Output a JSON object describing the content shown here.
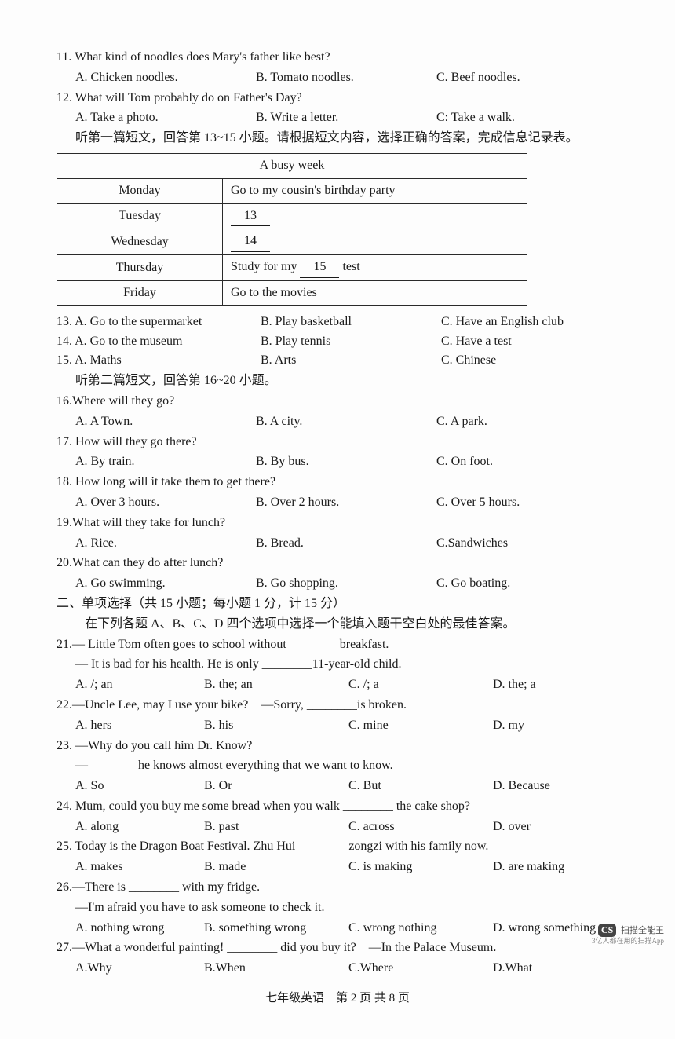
{
  "q11": {
    "text": "11. What kind of noodles does Mary's father like best?",
    "a": "A. Chicken noodles.",
    "b": "B. Tomato noodles.",
    "c": "C. Beef noodles."
  },
  "q12": {
    "text": "12. What will Tom probably do on Father's Day?",
    "a": "A. Take a photo.",
    "b": "B. Write a letter.",
    "c": "C: Take a walk."
  },
  "passage1_intro": "听第一篇短文，回答第 13~15 小题。请根据短文内容，选择正确的答案，完成信息记录表。",
  "table": {
    "title": "A busy week",
    "rows": [
      {
        "day": "Monday",
        "activity_pre": "Go to my cousin's birthday party",
        "blank": "",
        "activity_post": ""
      },
      {
        "day": "Tuesday",
        "activity_pre": "",
        "blank": "13",
        "activity_post": ""
      },
      {
        "day": "Wednesday",
        "activity_pre": "",
        "blank": "14",
        "activity_post": ""
      },
      {
        "day": "Thursday",
        "activity_pre": "Study for my ",
        "blank": "15",
        "activity_post": " test"
      },
      {
        "day": "Friday",
        "activity_pre": "Go to the movies",
        "blank": "",
        "activity_post": ""
      }
    ]
  },
  "q13": {
    "a": "13. A. Go to the supermarket",
    "b": "B. Play basketball",
    "c": "C. Have an English club"
  },
  "q14": {
    "a": "14. A. Go to the museum",
    "b": "B. Play tennis",
    "c": "C. Have a test"
  },
  "q15": {
    "a": "15. A. Maths",
    "b": "B. Arts",
    "c": "C. Chinese"
  },
  "passage2_intro": "听第二篇短文，回答第 16~20 小题。",
  "q16": {
    "text": "16.Where will they go?",
    "a": "A. A Town.",
    "b": "B. A city.",
    "c": "C. A park."
  },
  "q17": {
    "text": "17. How will they go there?",
    "a": "A. By train.",
    "b": "B. By bus.",
    "c": "C. On foot."
  },
  "q18": {
    "text": "18. How long will it take them to get there?",
    "a": "A. Over 3 hours.",
    "b": "B. Over 2 hours.",
    "c": "C. Over 5 hours."
  },
  "q19": {
    "text": "19.What will they take for lunch?",
    "a": "A. Rice.",
    "b": "B. Bread.",
    "c": "C.Sandwiches"
  },
  "q20": {
    "text": "20.What can they do after lunch?",
    "a": "A. Go swimming.",
    "b": "B. Go shopping.",
    "c": "C. Go boating."
  },
  "section2_title": "二、单项选择（共 15 小题；每小题 1 分，计 15 分）",
  "section2_sub": "在下列各题 A、B、C、D 四个选项中选择一个能填入题干空白处的最佳答案。",
  "q21": {
    "l1": "21.— Little Tom often goes to school without ________breakfast.",
    "l2": "— It is bad for his health. He is only ________11-year-old child.",
    "a": "A. /; an",
    "b": "B. the; an",
    "c": "C. /; a",
    "d": "D. the; a"
  },
  "q22": {
    "l1": "22.—Uncle Lee, may I use your bike?　—Sorry, ________is broken.",
    "a": "A. hers",
    "b": "B. his",
    "c": "C. mine",
    "d": "D. my"
  },
  "q23": {
    "l1": "23. —Why do you call him Dr. Know?",
    "l2": "—________he knows almost everything that we want to know.",
    "a": "A. So",
    "b": "B. Or",
    "c": "C. But",
    "d": "D. Because"
  },
  "q24": {
    "l1": "24. Mum, could you buy me some bread when you walk ________ the cake shop?",
    "a": "A. along",
    "b": "B. past",
    "c": "C. across",
    "d": "D. over"
  },
  "q25": {
    "l1": "25. Today is the Dragon Boat Festival. Zhu Hui________ zongzi with his family now.",
    "a": "A. makes",
    "b": "B. made",
    "c": "C. is making",
    "d": "D. are making"
  },
  "q26": {
    "l1": "26.—There is ________ with my fridge.",
    "l2": "—I'm afraid you have to ask someone to check it.",
    "a": "A. nothing wrong",
    "b": "B. something wrong",
    "c": "C. wrong nothing",
    "d": "D. wrong something"
  },
  "q27": {
    "l1": "27.—What a wonderful painting! ________ did you buy it?　—In the Palace Museum.",
    "a": "A.Why",
    "b": "B.When",
    "c": "C.Where",
    "d": "D.What"
  },
  "footer": "七年级英语　第 2 页 共 8 页",
  "watermark": {
    "badge": "CS",
    "title": "扫描全能王",
    "sub": "3亿人都在用的扫描App"
  }
}
